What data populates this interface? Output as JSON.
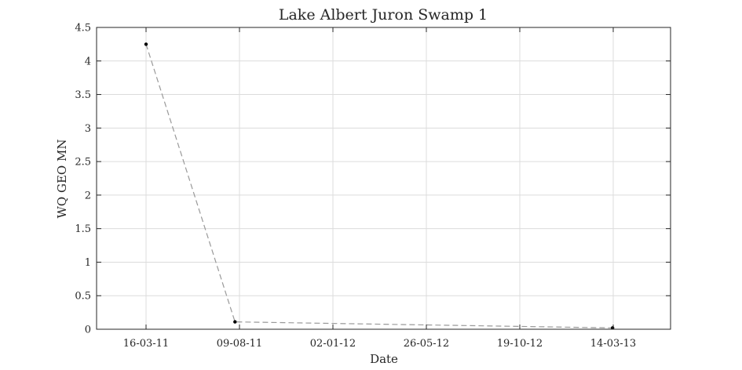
{
  "chart_data": {
    "type": "line",
    "title": "Lake Albert Juron Swamp 1",
    "xlabel": "Date",
    "ylabel": "WQ GEO MN",
    "x_ticks": [
      "16-03-11",
      "09-08-11",
      "02-01-12",
      "26-05-12",
      "19-10-12",
      "14-03-13"
    ],
    "ylim": [
      0,
      4.5
    ],
    "y_ticks": [
      "0",
      "0.5",
      "1",
      "1.5",
      "2",
      "2.5",
      "3",
      "3.5",
      "4",
      "4.5"
    ],
    "grid": true,
    "series": [
      {
        "points": [
          {
            "x": "16-03-11",
            "y": 4.25
          },
          {
            "x": "02-08-11",
            "y": 0.11
          },
          {
            "x": "14-03-13",
            "y": 0.02
          }
        ],
        "line_style": "dashed",
        "line_color": "#999999",
        "marker_color": "#000000"
      }
    ]
  }
}
